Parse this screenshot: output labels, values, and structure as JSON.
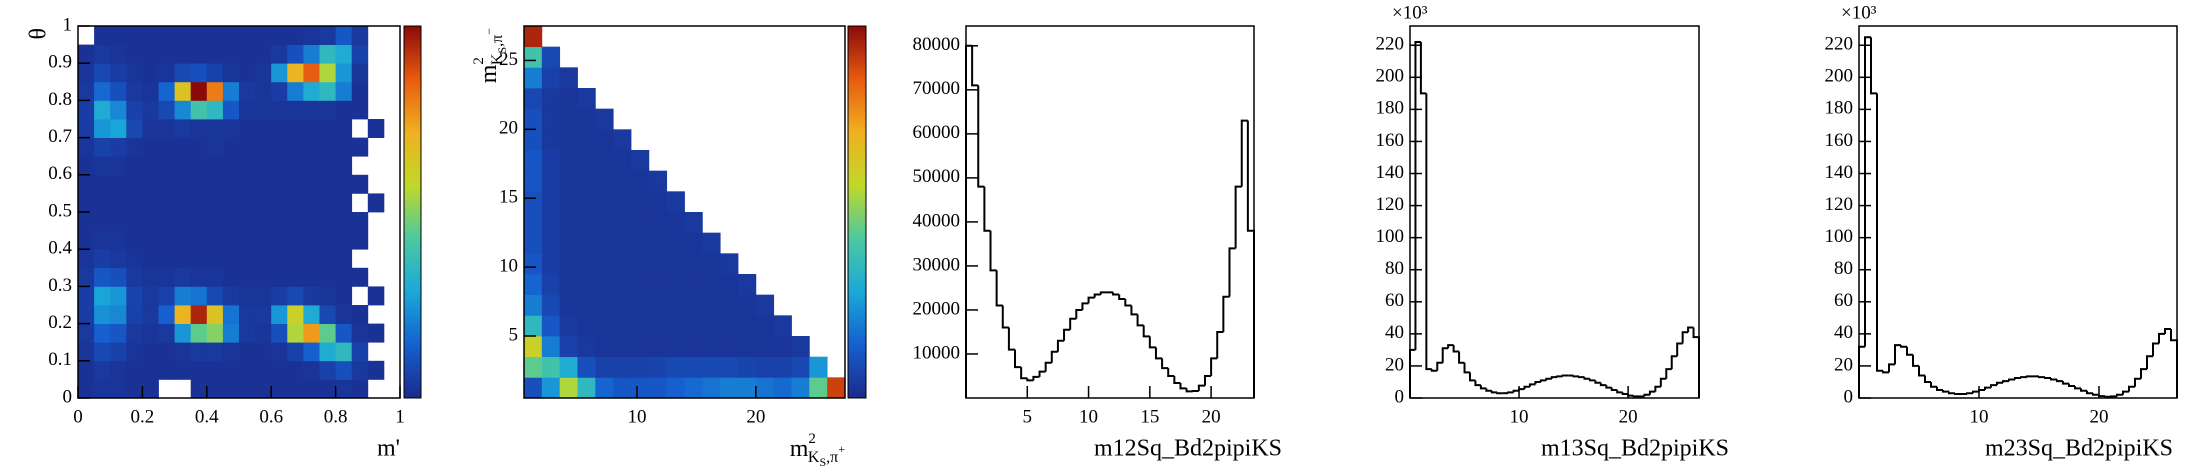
{
  "chart_data": [
    {
      "type": "heatmap",
      "x_label": "m'",
      "y_label": "θ",
      "xlim": [
        0,
        1
      ],
      "ylim": [
        0,
        1
      ],
      "xticks": [
        0,
        0.2,
        0.4,
        0.6,
        0.8,
        1
      ],
      "yticks": [
        0,
        0.1,
        0.2,
        0.3,
        0.4,
        0.5,
        0.6,
        0.7,
        0.8,
        0.9,
        1
      ],
      "x_bins": [
        0,
        0.05,
        0.1,
        0.15,
        0.2,
        0.25,
        0.3,
        0.35,
        0.4,
        0.45,
        0.5,
        0.55,
        0.6,
        0.65,
        0.7,
        0.75,
        0.8,
        0.85,
        0.9,
        0.95,
        1
      ],
      "y_bins": [
        0,
        0.05,
        0.1,
        0.15,
        0.2,
        0.25,
        0.3,
        0.35,
        0.4,
        0.45,
        0.5,
        0.55,
        0.6,
        0.65,
        0.7,
        0.75,
        0.8,
        0.85,
        0.9,
        0.95,
        1
      ],
      "zlim": [
        0,
        100
      ],
      "colormap": [
        "#1b2a8c",
        "#1560d0",
        "#1aa8d8",
        "#4cc9a0",
        "#c0d82a",
        "#f0b020",
        "#e85a10",
        "#8a0a0a"
      ],
      "z": [
        [
          2,
          3,
          3,
          2,
          2,
          null,
          null,
          2,
          2,
          2,
          2,
          2,
          2,
          2,
          2,
          2,
          3,
          2,
          null,
          null
        ],
        [
          2,
          4,
          3,
          2,
          2,
          2,
          2,
          2,
          2,
          2,
          2,
          2,
          2,
          2,
          3,
          6,
          10,
          4,
          2,
          null
        ],
        [
          3,
          8,
          6,
          3,
          2,
          2,
          3,
          4,
          4,
          3,
          2,
          2,
          3,
          6,
          14,
          30,
          35,
          6,
          null,
          null
        ],
        [
          4,
          14,
          12,
          4,
          3,
          4,
          25,
          45,
          50,
          20,
          4,
          3,
          10,
          55,
          75,
          45,
          12,
          3,
          2,
          null
        ],
        [
          5,
          24,
          22,
          6,
          4,
          14,
          70,
          95,
          65,
          18,
          4,
          4,
          25,
          60,
          30,
          8,
          3,
          2,
          null,
          null
        ],
        [
          5,
          28,
          25,
          7,
          4,
          6,
          20,
          18,
          8,
          4,
          3,
          3,
          5,
          8,
          4,
          3,
          2,
          null,
          2,
          null
        ],
        [
          4,
          12,
          10,
          4,
          3,
          3,
          4,
          3,
          3,
          2,
          2,
          2,
          2,
          2,
          2,
          2,
          2,
          2,
          null,
          null
        ],
        [
          3,
          5,
          4,
          3,
          2,
          2,
          2,
          2,
          2,
          2,
          2,
          2,
          2,
          2,
          2,
          2,
          2,
          null,
          null,
          null
        ],
        [
          2,
          3,
          3,
          2,
          2,
          2,
          2,
          2,
          2,
          2,
          2,
          2,
          2,
          2,
          2,
          2,
          2,
          2,
          null,
          null
        ],
        [
          2,
          2,
          2,
          2,
          2,
          2,
          2,
          2,
          2,
          2,
          2,
          2,
          2,
          2,
          2,
          2,
          2,
          2,
          null,
          null
        ],
        [
          2,
          2,
          2,
          2,
          2,
          2,
          2,
          2,
          2,
          2,
          2,
          2,
          2,
          2,
          2,
          2,
          2,
          null,
          2,
          null
        ],
        [
          2,
          2,
          2,
          2,
          2,
          2,
          2,
          2,
          2,
          2,
          2,
          2,
          2,
          2,
          2,
          2,
          2,
          2,
          null,
          null
        ],
        [
          2,
          3,
          3,
          2,
          2,
          2,
          2,
          2,
          2,
          2,
          2,
          2,
          2,
          2,
          2,
          2,
          2,
          null,
          null,
          null
        ],
        [
          3,
          6,
          5,
          3,
          2,
          2,
          2,
          2,
          3,
          2,
          2,
          2,
          2,
          2,
          2,
          2,
          2,
          2,
          null,
          null
        ],
        [
          5,
          25,
          28,
          8,
          3,
          3,
          4,
          3,
          3,
          3,
          2,
          2,
          2,
          2,
          2,
          2,
          2,
          null,
          2,
          null
        ],
        [
          5,
          30,
          22,
          6,
          4,
          8,
          22,
          40,
          35,
          12,
          3,
          3,
          3,
          3,
          3,
          3,
          2,
          2,
          null,
          null
        ],
        [
          4,
          16,
          10,
          4,
          3,
          15,
          65,
          100,
          80,
          20,
          4,
          3,
          5,
          20,
          30,
          35,
          20,
          2,
          null,
          null
        ],
        [
          3,
          8,
          5,
          3,
          2,
          3,
          8,
          10,
          6,
          3,
          2,
          3,
          25,
          70,
          85,
          55,
          25,
          3,
          null,
          null
        ],
        [
          2,
          4,
          3,
          2,
          2,
          2,
          2,
          2,
          2,
          2,
          2,
          2,
          4,
          10,
          20,
          35,
          30,
          6,
          null,
          null
        ],
        [
          null,
          2,
          2,
          2,
          2,
          2,
          2,
          2,
          2,
          2,
          2,
          2,
          2,
          2,
          3,
          4,
          12,
          4,
          null,
          null
        ]
      ]
    },
    {
      "type": "heatmap",
      "x_label": {
        "base": "m",
        "sup": "2",
        "sub": "K",
        "subsub": "S",
        "sub2": ",π",
        "subsup": "+"
      },
      "y_label": {
        "base": "m",
        "sup": "2",
        "sub": "K",
        "subsub": "S",
        "sub2": ",π",
        "subsup": "−"
      },
      "xlim": [
        0.5,
        27.5
      ],
      "ylim": [
        0.5,
        27.5
      ],
      "xticks": [
        10,
        20
      ],
      "yticks": [
        5,
        10,
        15,
        20,
        25
      ],
      "x_bins": [
        0.5,
        2,
        3.5,
        5,
        6.5,
        8,
        9.5,
        11,
        12.5,
        14,
        15.5,
        17,
        18.5,
        20,
        21.5,
        23,
        24.5,
        26,
        27.5
      ],
      "y_bins": [
        0.5,
        2,
        3.5,
        5,
        6.5,
        8,
        9.5,
        11,
        12.5,
        14,
        15.5,
        17,
        18.5,
        20,
        21.5,
        23,
        24.5,
        26,
        27.5
      ],
      "zlim": [
        0,
        100
      ],
      "colormap": [
        "#1b2a8c",
        "#1560d0",
        "#1aa8d8",
        "#4cc9a0",
        "#c0d82a",
        "#f0b020",
        "#e85a10",
        "#8a0a0a"
      ],
      "z": [
        [
          10,
          25,
          55,
          35,
          15,
          12,
          12,
          12,
          14,
          16,
          18,
          20,
          20,
          18,
          16,
          20,
          45,
          90
        ],
        [
          45,
          40,
          30,
          10,
          6,
          6,
          6,
          7,
          8,
          8,
          8,
          8,
          7,
          6,
          6,
          8,
          25,
          null
        ],
        [
          60,
          20,
          6,
          4,
          3,
          3,
          3,
          3,
          3,
          3,
          3,
          3,
          3,
          3,
          3,
          4,
          null,
          null
        ],
        [
          35,
          12,
          4,
          3,
          3,
          3,
          3,
          3,
          3,
          3,
          3,
          3,
          3,
          3,
          4,
          null,
          null,
          null
        ],
        [
          20,
          8,
          3,
          3,
          3,
          3,
          3,
          3,
          3,
          3,
          3,
          3,
          3,
          4,
          null,
          null,
          null,
          null
        ],
        [
          15,
          6,
          3,
          3,
          3,
          3,
          3,
          3,
          3,
          3,
          3,
          3,
          4,
          null,
          null,
          null,
          null,
          null
        ],
        [
          12,
          5,
          3,
          3,
          3,
          3,
          3,
          3,
          3,
          3,
          3,
          4,
          null,
          null,
          null,
          null,
          null,
          null
        ],
        [
          10,
          5,
          3,
          3,
          3,
          3,
          3,
          3,
          3,
          3,
          4,
          null,
          null,
          null,
          null,
          null,
          null,
          null
        ],
        [
          10,
          5,
          3,
          3,
          3,
          3,
          3,
          3,
          3,
          4,
          null,
          null,
          null,
          null,
          null,
          null,
          null,
          null
        ],
        [
          10,
          5,
          3,
          3,
          3,
          3,
          3,
          3,
          4,
          null,
          null,
          null,
          null,
          null,
          null,
          null,
          null,
          null
        ],
        [
          12,
          5,
          3,
          3,
          3,
          3,
          3,
          4,
          null,
          null,
          null,
          null,
          null,
          null,
          null,
          null,
          null,
          null
        ],
        [
          12,
          5,
          3,
          3,
          3,
          3,
          4,
          null,
          null,
          null,
          null,
          null,
          null,
          null,
          null,
          null,
          null,
          null
        ],
        [
          10,
          4,
          3,
          3,
          3,
          4,
          null,
          null,
          null,
          null,
          null,
          null,
          null,
          null,
          null,
          null,
          null,
          null
        ],
        [
          10,
          4,
          3,
          3,
          4,
          null,
          null,
          null,
          null,
          null,
          null,
          null,
          null,
          null,
          null,
          null,
          null,
          null
        ],
        [
          8,
          4,
          3,
          4,
          null,
          null,
          null,
          null,
          null,
          null,
          null,
          null,
          null,
          null,
          null,
          null,
          null,
          null
        ],
        [
          20,
          6,
          4,
          null,
          null,
          null,
          null,
          null,
          null,
          null,
          null,
          null,
          null,
          null,
          null,
          null,
          null,
          null
        ],
        [
          40,
          8,
          null,
          null,
          null,
          null,
          null,
          null,
          null,
          null,
          null,
          null,
          null,
          null,
          null,
          null,
          null,
          null
        ],
        [
          95,
          null,
          null,
          null,
          null,
          null,
          null,
          null,
          null,
          null,
          null,
          null,
          null,
          null,
          null,
          null,
          null,
          null
        ]
      ]
    },
    {
      "type": "histogram",
      "x_label": "m12Sq_Bd2pipiKS",
      "color": "#000000",
      "xlim": [
        0,
        23.5
      ],
      "ylim": [
        0,
        84500
      ],
      "xticks": [
        5,
        10,
        15,
        20
      ],
      "yticks": [
        10000,
        20000,
        30000,
        40000,
        50000,
        60000,
        70000,
        80000
      ],
      "bins": [
        0,
        0.5,
        1,
        1.5,
        2,
        2.5,
        3,
        3.5,
        4,
        4.5,
        5,
        5.5,
        6,
        6.5,
        7,
        7.5,
        8,
        8.5,
        9,
        9.5,
        10,
        10.5,
        11,
        11.5,
        12,
        12.5,
        13,
        13.5,
        14,
        14.5,
        15,
        15.5,
        16,
        16.5,
        17,
        17.5,
        18,
        18.5,
        19,
        19.5,
        20,
        20.5,
        21,
        21.5,
        22,
        22.5,
        23,
        23.5
      ],
      "values": [
        80000,
        71000,
        48000,
        38000,
        29000,
        21000,
        16000,
        11000,
        7000,
        4500,
        4000,
        4800,
        6000,
        8000,
        10500,
        13000,
        15500,
        18000,
        20000,
        21500,
        22800,
        23500,
        24000,
        24000,
        23500,
        22500,
        21000,
        19000,
        16500,
        14000,
        11500,
        9000,
        6800,
        5000,
        3400,
        2200,
        1500,
        1600,
        2800,
        5000,
        9000,
        15000,
        23000,
        34000,
        48000,
        63000,
        38000
      ]
    },
    {
      "type": "histogram",
      "x_label": "m13Sq_Bd2pipiKS",
      "exponent_label": "×10³",
      "color": "#000000",
      "xlim": [
        0,
        26.5
      ],
      "ylim": [
        0,
        232
      ],
      "xticks": [
        10,
        20
      ],
      "yticks": [
        0,
        20,
        40,
        60,
        80,
        100,
        120,
        140,
        160,
        180,
        200,
        220
      ],
      "bins": [
        0,
        0.5,
        1,
        1.5,
        2,
        2.5,
        3,
        3.5,
        4,
        4.5,
        5,
        5.5,
        6,
        6.5,
        7,
        7.5,
        8,
        8.5,
        9,
        9.5,
        10,
        10.5,
        11,
        11.5,
        12,
        12.5,
        13,
        13.5,
        14,
        14.5,
        15,
        15.5,
        16,
        16.5,
        17,
        17.5,
        18,
        18.5,
        19,
        19.5,
        20,
        20.5,
        21,
        21.5,
        22,
        22.5,
        23,
        23.5,
        24,
        24.5,
        25,
        25.5,
        26,
        26.5
      ],
      "values": [
        30,
        222,
        190,
        18,
        17,
        22,
        31,
        33,
        29,
        22,
        16,
        11,
        8,
        6,
        4.5,
        3.5,
        3,
        3,
        3.5,
        4.5,
        5.5,
        7,
        8.5,
        10,
        11,
        12,
        13,
        13.5,
        14,
        14,
        13.5,
        13,
        12,
        11,
        9.5,
        8,
        6.5,
        5,
        3.5,
        2.5,
        1.5,
        1,
        1,
        2,
        4,
        7,
        12,
        18,
        26,
        34,
        41,
        44,
        38
      ]
    },
    {
      "type": "histogram",
      "x_label": "m23Sq_Bd2pipiKS",
      "exponent_label": "×10³",
      "color": "#000000",
      "xlim": [
        0,
        26.5
      ],
      "ylim": [
        0,
        232
      ],
      "xticks": [
        10,
        20
      ],
      "yticks": [
        0,
        20,
        40,
        60,
        80,
        100,
        120,
        140,
        160,
        180,
        200,
        220
      ],
      "bins": [
        0,
        0.5,
        1,
        1.5,
        2,
        2.5,
        3,
        3.5,
        4,
        4.5,
        5,
        5.5,
        6,
        6.5,
        7,
        7.5,
        8,
        8.5,
        9,
        9.5,
        10,
        10.5,
        11,
        11.5,
        12,
        12.5,
        13,
        13.5,
        14,
        14.5,
        15,
        15.5,
        16,
        16.5,
        17,
        17.5,
        18,
        18.5,
        19,
        19.5,
        20,
        20.5,
        21,
        21.5,
        22,
        22.5,
        23,
        23.5,
        24,
        24.5,
        25,
        25.5,
        26,
        26.5
      ],
      "values": [
        32,
        225,
        190,
        17,
        16,
        21,
        33,
        32,
        27,
        20,
        14,
        10,
        7,
        5,
        4,
        3,
        2.5,
        2.5,
        3,
        4,
        5,
        6.5,
        8,
        9.5,
        10.5,
        11.5,
        12.5,
        13,
        13.5,
        13.5,
        13,
        12.5,
        11.5,
        10.5,
        9,
        7.5,
        6,
        4.5,
        3,
        2,
        1.2,
        0.8,
        1,
        2,
        4,
        7,
        12,
        18,
        26,
        34,
        40,
        43,
        36
      ]
    }
  ]
}
